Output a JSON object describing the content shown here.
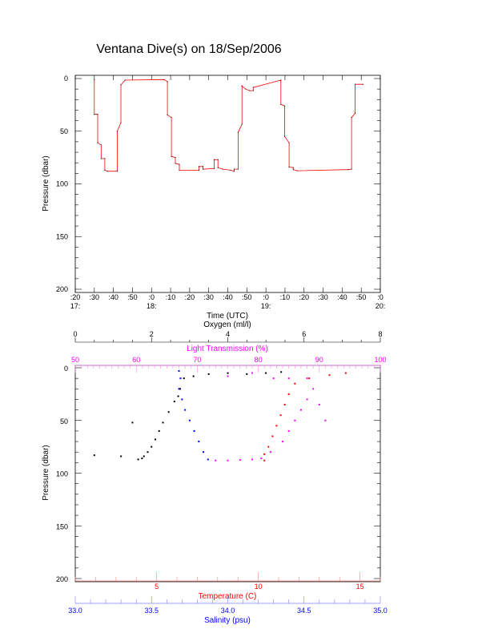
{
  "title": "Ventana Dive(s) on 18/Sep/2006",
  "chart_data": [
    {
      "type": "line",
      "xlabel": "Time (UTC)",
      "ylabel": "Pressure (dbar)",
      "xlim": [
        "17:20:00",
        "20:00:00"
      ],
      "ylim": [
        200,
        0
      ],
      "y_reversed": true,
      "x_tick_labels": [
        ":20",
        ":30",
        ":40",
        ":50",
        ":0",
        ":10",
        ":20",
        ":30",
        ":40",
        ":50",
        ":0",
        ":10",
        ":20",
        ":30",
        ":40",
        ":50",
        ":0"
      ],
      "x_hour_labels": [
        {
          "at": "17:20:00",
          "label": "17:"
        },
        {
          "at": "18:00:00",
          "label": "18:"
        },
        {
          "at": "19:00:00",
          "label": "19:"
        },
        {
          "at": "20:00:00",
          "label": "20:"
        }
      ],
      "y_ticks": [
        0,
        50,
        100,
        150,
        200
      ],
      "color": "#ff0000",
      "series": [
        {
          "points": [
            [
              "17:30:00",
              1
            ],
            [
              "17:30:00",
              34
            ],
            [
              "17:31:45",
              34
            ],
            [
              "17:31:45",
              61
            ],
            [
              "17:33:35",
              63
            ],
            [
              "17:33:35",
              76
            ],
            [
              "17:35:30",
              76
            ],
            [
              "17:35:30",
              87
            ],
            [
              "17:36:50",
              88
            ],
            [
              "17:42:00",
              88
            ],
            [
              "17:42:00",
              50
            ],
            [
              "17:43:55",
              42
            ],
            [
              "17:43:55",
              6
            ],
            [
              "17:46:10",
              1.5
            ],
            [
              "18:06:35",
              1
            ],
            [
              "18:08:20",
              3
            ],
            [
              "18:08:20",
              34.5
            ],
            [
              "18:10:25",
              37
            ],
            [
              "18:10:25",
              74
            ],
            [
              "18:12:30",
              75
            ],
            [
              "18:12:30",
              80.5
            ],
            [
              "18:14:35",
              81.5
            ],
            [
              "18:14:35",
              87
            ],
            [
              "18:24:55",
              87
            ],
            [
              "18:24:55",
              83.5
            ],
            [
              "18:27:00",
              83.5
            ],
            [
              "18:27:00",
              86
            ],
            [
              "18:32:50",
              85.5
            ],
            [
              "18:32:50",
              77
            ],
            [
              "18:34:50",
              77
            ],
            [
              "18:34:50",
              84.5
            ],
            [
              "18:37:25",
              86
            ],
            [
              "18:41:25",
              87
            ],
            [
              "18:43:20",
              88
            ],
            [
              "18:43:20",
              86
            ],
            [
              "18:45:25",
              86
            ],
            [
              "18:45:25",
              51
            ],
            [
              "18:47:25",
              43.5
            ],
            [
              "18:47:25",
              7
            ],
            [
              "18:49:25",
              10
            ],
            [
              "18:51:30",
              11.5
            ],
            [
              "18:53:20",
              11.5
            ],
            [
              "18:53:20",
              8.5
            ],
            [
              "19:07:50",
              1.5
            ],
            [
              "19:07:50",
              24.5
            ],
            [
              "19:09:50",
              26
            ],
            [
              "19:09:50",
              55
            ],
            [
              "19:12:10",
              61
            ],
            [
              "19:12:10",
              84
            ],
            [
              "19:14:20",
              84.5
            ],
            [
              "19:14:20",
              86.5
            ],
            [
              "19:16:20",
              87.5
            ],
            [
              "19:43:05",
              86.5
            ],
            [
              "19:44:55",
              86
            ],
            [
              "19:44:55",
              37
            ],
            [
              "19:46:50",
              33
            ],
            [
              "19:46:50",
              5.5
            ],
            [
              "19:50:55",
              5.5
            ]
          ]
        }
      ]
    },
    {
      "type": "scatter",
      "ylabel": "Pressure (dbar)",
      "ylim": [
        200,
        0
      ],
      "y_reversed": true,
      "y_ticks": [
        0,
        50,
        100,
        150,
        200
      ],
      "axes": {
        "oxygen": {
          "label": "Oxygen (ml/l)",
          "range": [
            0,
            8
          ],
          "ticks": [
            "0",
            "2",
            "4",
            "6",
            "8"
          ],
          "color": "#000000"
        },
        "light": {
          "label": "Light Transmission (%)",
          "range": [
            50,
            100
          ],
          "ticks": [
            "50",
            "60",
            "70",
            "80",
            "90",
            "100"
          ],
          "color": "#ff00ff"
        },
        "temperature": {
          "label": "Temperature (C)",
          "range": [
            1,
            16
          ],
          "ticks": [
            "5",
            "10",
            "15"
          ],
          "color": "#ff0000"
        },
        "salinity": {
          "label": "Salinity (psu)",
          "range": [
            33.0,
            35.0
          ],
          "ticks": [
            "33.0",
            "33.5",
            "34.0",
            "34.5",
            "35.0"
          ],
          "color": "#0000ff"
        }
      },
      "series": [
        {
          "axis": "oxygen",
          "color": "#000000",
          "points": [
            [
              1.65,
              87
            ],
            [
              1.75,
              86
            ],
            [
              1.8,
              84
            ],
            [
              1.9,
              80
            ],
            [
              2.0,
              75
            ],
            [
              2.1,
              68
            ],
            [
              2.2,
              60
            ],
            [
              2.3,
              52
            ],
            [
              2.45,
              42
            ],
            [
              2.6,
              32
            ],
            [
              2.75,
              20
            ],
            [
              2.85,
              10
            ],
            [
              3.1,
              8
            ],
            [
              3.5,
              6
            ],
            [
              4.0,
              5
            ],
            [
              4.5,
              6
            ],
            [
              5.0,
              5
            ],
            [
              5.4,
              4
            ],
            [
              0.5,
              83
            ],
            [
              1.2,
              84
            ],
            [
              1.5,
              52
            ],
            [
              2.7,
              27
            ]
          ]
        },
        {
          "axis": "salinity",
          "color": "#0000ff",
          "points": [
            [
              33.68,
              3
            ],
            [
              33.69,
              10
            ],
            [
              33.68,
              20
            ],
            [
              33.7,
              30
            ],
            [
              33.72,
              40
            ],
            [
              33.75,
              50
            ],
            [
              33.78,
              60
            ],
            [
              33.81,
              70
            ],
            [
              33.84,
              80
            ],
            [
              33.87,
              87
            ]
          ]
        },
        {
          "axis": "light",
          "color": "#ff00ff",
          "points": [
            [
              73,
              88
            ],
            [
              75,
              88
            ],
            [
              77,
              87.5
            ],
            [
              79,
              87
            ],
            [
              80.5,
              86
            ],
            [
              82,
              80
            ],
            [
              84,
              70
            ],
            [
              85,
              60
            ],
            [
              86,
              50
            ],
            [
              87,
              40
            ],
            [
              88,
              30
            ],
            [
              89,
              20
            ],
            [
              88,
              10
            ],
            [
              85,
              10
            ],
            [
              82.5,
              10
            ],
            [
              79,
              5
            ],
            [
              75,
              8
            ],
            [
              91,
              50
            ],
            [
              90,
              35
            ]
          ]
        },
        {
          "axis": "temperature",
          "color": "#ff0000",
          "points": [
            [
              10.3,
              88
            ],
            [
              10.3,
              82
            ],
            [
              10.5,
              75
            ],
            [
              10.7,
              65
            ],
            [
              10.9,
              55
            ],
            [
              11.1,
              45
            ],
            [
              11.3,
              35
            ],
            [
              11.5,
              25
            ],
            [
              11.8,
              15
            ],
            [
              12.5,
              10
            ],
            [
              13.5,
              7
            ],
            [
              14.3,
              5
            ]
          ]
        }
      ]
    }
  ]
}
